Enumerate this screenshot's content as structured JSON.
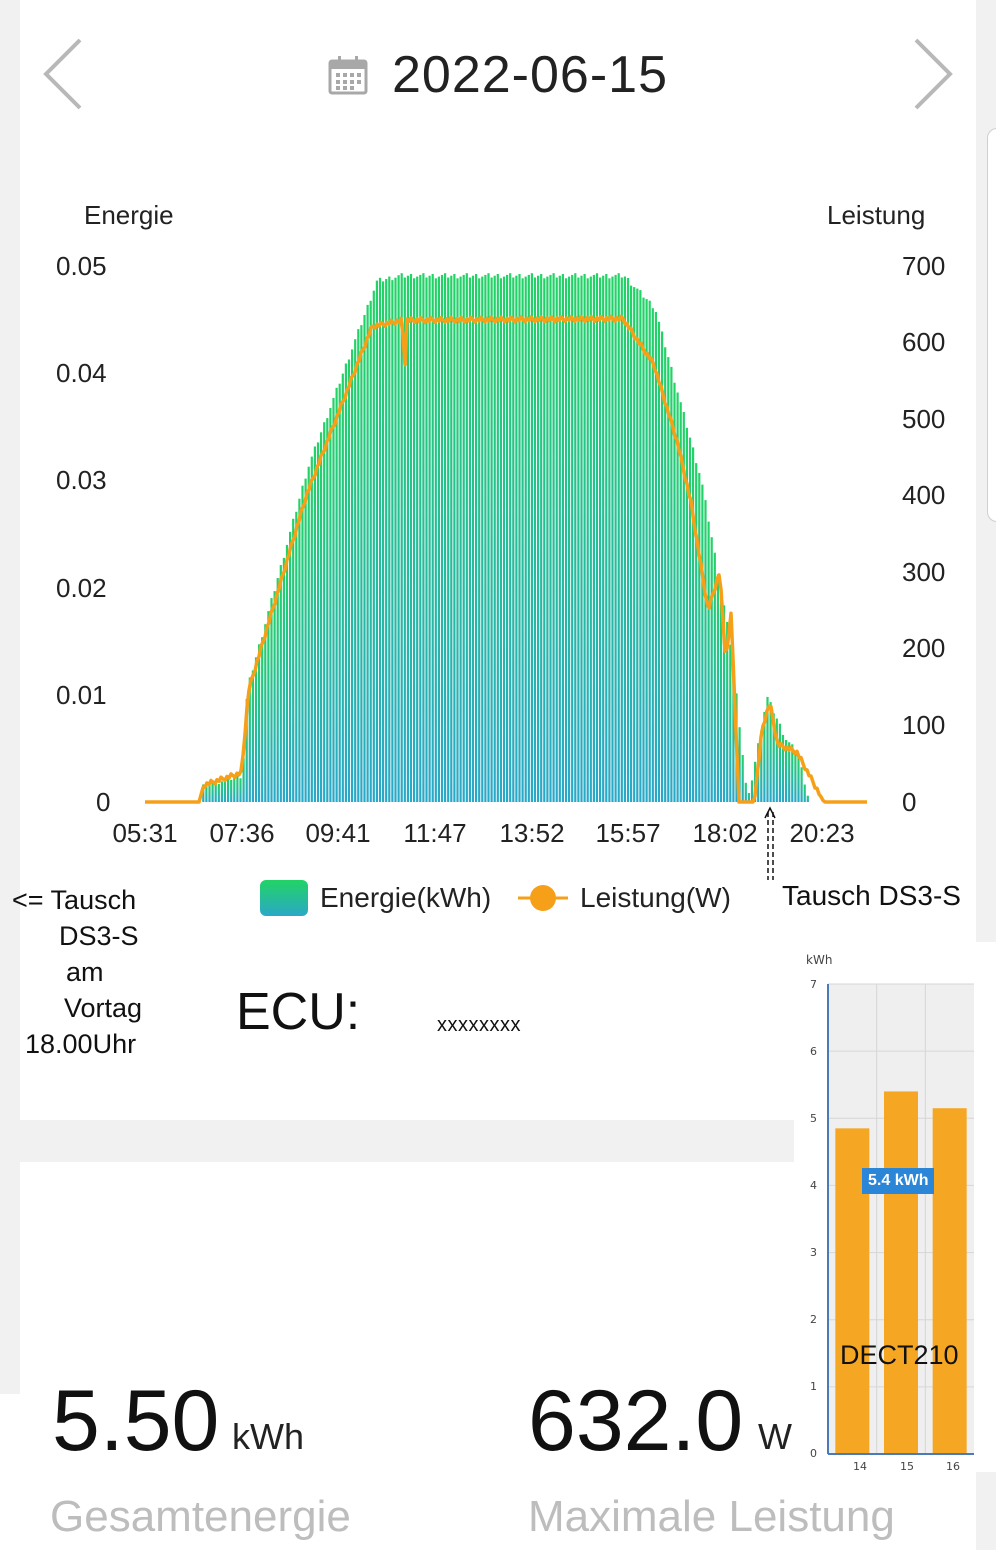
{
  "header": {
    "date": "2022-06-15",
    "prev_icon": "chevron-left-icon",
    "next_icon": "chevron-right-icon",
    "calendar_icon": "calendar-icon"
  },
  "chart_data": {
    "type": "bar+line",
    "left_axis_title": "Energie",
    "right_axis_title": "Leistung",
    "left_ticks": [
      "0.05",
      "0.04",
      "0.03",
      "0.02",
      "0.01",
      "0"
    ],
    "right_ticks": [
      "700",
      "600",
      "500",
      "400",
      "300",
      "200",
      "100",
      "0"
    ],
    "left_range": [
      0,
      0.05
    ],
    "right_range": [
      0,
      700
    ],
    "x_ticks": [
      "05:31",
      "07:36",
      "09:41",
      "11:47",
      "13:52",
      "15:57",
      "18:02",
      "20:23"
    ],
    "legend": [
      {
        "label": "Energie(kWh)",
        "color": "#1fcf6a",
        "icon": "bar-swatch"
      },
      {
        "label": "Leistung(W)",
        "color": "#f6a019",
        "icon": "line-dot"
      }
    ],
    "series_energy_profile": [
      [
        "05:31",
        0
      ],
      [
        "06:41",
        0
      ],
      [
        "06:42",
        0.0015
      ],
      [
        "07:36",
        0.0025
      ],
      [
        "07:42",
        0.0105
      ],
      [
        "09:00",
        0.031
      ],
      [
        "10:30",
        0.0485
      ],
      [
        "11:00",
        0.049
      ],
      [
        "15:50",
        0.049
      ],
      [
        "16:30",
        0.046
      ],
      [
        "17:00",
        0.038
      ],
      [
        "17:30",
        0.03
      ],
      [
        "18:00",
        0.018
      ],
      [
        "18:10",
        0.0137
      ],
      [
        "18:30",
        0
      ],
      [
        "18:55",
        0.0098
      ],
      [
        "19:20",
        0.0058
      ],
      [
        "19:35",
        0.0045
      ],
      [
        "19:50",
        0
      ]
    ],
    "series_power_profile": [
      [
        "05:31",
        0
      ],
      [
        "06:41",
        0
      ],
      [
        "06:47",
        22
      ],
      [
        "07:36",
        38
      ],
      [
        "07:45",
        145
      ],
      [
        "09:00",
        400
      ],
      [
        "10:25",
        620
      ],
      [
        "11:05",
        628
      ],
      [
        "11:06",
        310
      ],
      [
        "11:08",
        628
      ],
      [
        "15:50",
        630
      ],
      [
        "16:30",
        570
      ],
      [
        "17:00",
        470
      ],
      [
        "17:18",
        390
      ],
      [
        "17:40",
        250
      ],
      [
        "17:55",
        300
      ],
      [
        "18:03",
        185
      ],
      [
        "18:10",
        245
      ],
      [
        "18:20",
        0
      ],
      [
        "18:40",
        0
      ],
      [
        "18:50",
        95
      ],
      [
        "19:00",
        130
      ],
      [
        "19:10",
        75
      ],
      [
        "19:35",
        65
      ],
      [
        "20:10",
        0
      ],
      [
        "20:37",
        0
      ]
    ]
  },
  "annotations": {
    "left_note": [
      "<= Tausch",
      "DS3-S",
      "am",
      "Vortag",
      "18.00Uhr"
    ],
    "right_note": "Tausch DS3-S"
  },
  "ecu": {
    "label": "ECU:",
    "value": "xxxxxxxx"
  },
  "stats": {
    "total_energy_value": "5.50",
    "total_energy_unit": "kWh",
    "total_energy_label": "Gesamtenergie",
    "max_power_value": "632.0",
    "max_power_unit": "W",
    "max_power_label": "Maximale Leistung"
  },
  "mini_chart": {
    "type": "bar",
    "y_unit": "kWh",
    "y_ticks": [
      "7",
      "6",
      "5",
      "4",
      "3",
      "2",
      "1",
      "0"
    ],
    "y_range": [
      0,
      7
    ],
    "categories": [
      "14",
      "15",
      "16"
    ],
    "values": [
      4.85,
      5.4,
      5.15
    ],
    "bar_color": "#f5a623",
    "tooltip": "5.4 kWh",
    "watermark": "DECT210"
  }
}
